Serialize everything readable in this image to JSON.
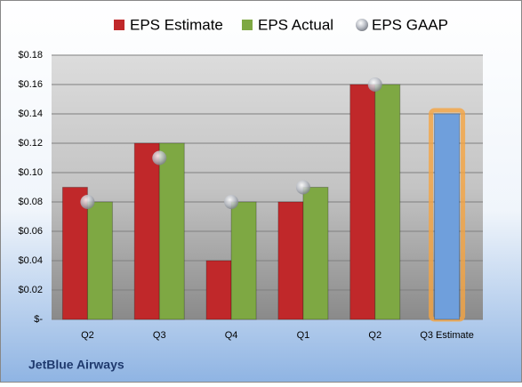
{
  "chart_data": {
    "type": "bar",
    "footer": "JetBlue Airways",
    "categories": [
      "Q2",
      "Q3",
      "Q4",
      "Q1",
      "Q2",
      "Q3 Estimate"
    ],
    "series": [
      {
        "name": "EPS Estimate",
        "color": "#c0282a",
        "colors": [
          "#c0282a",
          "#c0282a",
          "#c0282a",
          "#c0282a",
          "#c0282a",
          "#6f9fdc"
        ],
        "values": [
          0.09,
          0.12,
          0.04,
          0.08,
          0.16,
          0.14
        ]
      },
      {
        "name": "EPS Actual",
        "color": "#7ea843",
        "values": [
          0.08,
          0.12,
          0.08,
          0.09,
          0.16,
          null
        ]
      },
      {
        "name": "EPS GAAP",
        "color": "#b8bcc4",
        "marker": "circle",
        "values": [
          0.08,
          0.11,
          0.08,
          0.09,
          0.16,
          null
        ]
      }
    ],
    "ylim": [
      0,
      0.18
    ],
    "yticks": [
      {
        "value": 0,
        "label": "$-"
      },
      {
        "value": 0.02,
        "label": "$0.02"
      },
      {
        "value": 0.04,
        "label": "$0.04"
      },
      {
        "value": 0.06,
        "label": "$0.06"
      },
      {
        "value": 0.08,
        "label": "$0.08"
      },
      {
        "value": 0.1,
        "label": "$0.10"
      },
      {
        "value": 0.12,
        "label": "$0.12"
      },
      {
        "value": 0.14,
        "label": "$0.14"
      },
      {
        "value": 0.16,
        "label": "$0.16"
      },
      {
        "value": 0.18,
        "label": "$0.18"
      }
    ],
    "grid": true,
    "legend": "top"
  }
}
